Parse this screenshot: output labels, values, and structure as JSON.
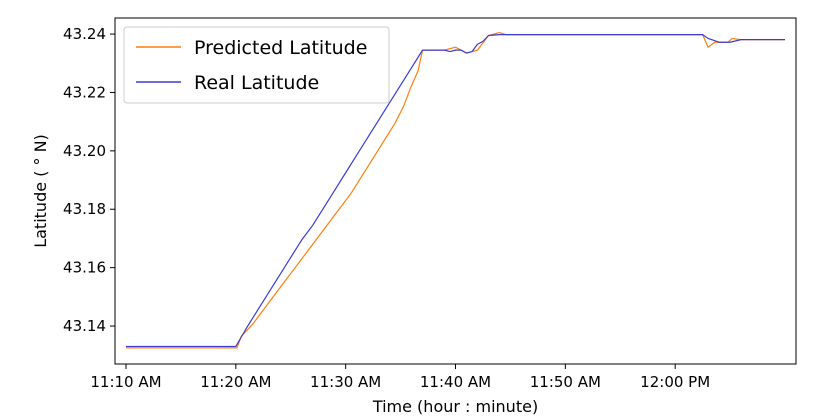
{
  "colors": {
    "predicted": "#ff7f0e",
    "real": "#3b3bd6",
    "axis": "#000000",
    "legend_border": "#cccccc"
  },
  "chart_data": {
    "type": "line",
    "xlabel": "Time (hour : minute)",
    "ylabel": "Latitude ( ° N)",
    "xlim": [
      -1,
      61
    ],
    "ylim": [
      43.127,
      43.2455
    ],
    "x_tick_values": [
      0,
      10,
      20,
      30,
      40,
      50
    ],
    "x_tick_labels": [
      "11:10 AM",
      "11:20 AM",
      "11:30 AM",
      "11:40 AM",
      "11:50 AM",
      "12:00 PM"
    ],
    "y_tick_values": [
      43.14,
      43.16,
      43.18,
      43.2,
      43.22,
      43.24
    ],
    "y_tick_labels": [
      "43.14",
      "43.16",
      "43.18",
      "43.20",
      "43.22",
      "43.24"
    ],
    "grid": false,
    "legend_position": "upper-left",
    "series": [
      {
        "name": "Predicted Latitude",
        "color": "#ff7f0e",
        "x": [
          0,
          9.5,
          10.1,
          10.5,
          11.5,
          12.5,
          13.5,
          14.5,
          15.5,
          16.5,
          17.5,
          18.5,
          19.5,
          20.5,
          21.5,
          22.5,
          23.5,
          24.5,
          25.3,
          25.9,
          26.6,
          27.0,
          28.0,
          29.0,
          30.0,
          31.0,
          32.0,
          33.0,
          34.0,
          34.6,
          35.3,
          35.9,
          36.6,
          37.5,
          38.0,
          38.6,
          39.0,
          40.0,
          45.0,
          50.0,
          52.5,
          53.0,
          53.6,
          54.2,
          54.8,
          55.2,
          55.9,
          57.0,
          60.0
        ],
        "y": [
          43.1325,
          43.1325,
          43.1325,
          43.1365,
          43.1405,
          43.1455,
          43.1505,
          43.1555,
          43.1605,
          43.1655,
          43.1705,
          43.1755,
          43.1805,
          43.1855,
          43.1915,
          43.1975,
          43.2035,
          43.2095,
          43.2155,
          43.2215,
          43.2275,
          43.2345,
          43.2345,
          43.2345,
          43.2355,
          43.2335,
          43.2345,
          43.2395,
          43.2405,
          43.2398,
          43.2398,
          43.2398,
          43.2398,
          43.2398,
          43.2398,
          43.2398,
          43.2398,
          43.2398,
          43.2398,
          43.2398,
          43.2398,
          43.2355,
          43.2372,
          43.2372,
          43.2372,
          43.2385,
          43.2381,
          43.2381,
          43.2381
        ]
      },
      {
        "name": "Real Latitude",
        "color": "#3b3bd6",
        "x": [
          0,
          9.3,
          10.0,
          11.0,
          12.0,
          13.0,
          14.0,
          15.0,
          16.0,
          17.0,
          18.0,
          19.0,
          20.0,
          21.0,
          22.0,
          23.0,
          24.0,
          25.0,
          26.0,
          27.0,
          28.0,
          29.0,
          29.5,
          30.0,
          30.5,
          31.0,
          31.5,
          32.0,
          32.5,
          33.0,
          34.0,
          35.0,
          40.0,
          45.0,
          50.0,
          52.5,
          53.0,
          54.0,
          55.0,
          56.0,
          60.0
        ],
        "y": [
          43.133,
          43.133,
          43.133,
          43.1395,
          43.1455,
          43.1515,
          43.1575,
          43.1635,
          43.1695,
          43.1745,
          43.1805,
          43.1865,
          43.1925,
          43.1985,
          43.2045,
          43.2105,
          43.2165,
          43.2225,
          43.2285,
          43.2345,
          43.2345,
          43.2345,
          43.234,
          43.2345,
          43.2345,
          43.2335,
          43.234,
          43.2365,
          43.2375,
          43.2395,
          43.2398,
          43.2398,
          43.2398,
          43.2398,
          43.2398,
          43.2398,
          43.2385,
          43.2372,
          43.2372,
          43.2381,
          43.2381
        ]
      }
    ]
  }
}
